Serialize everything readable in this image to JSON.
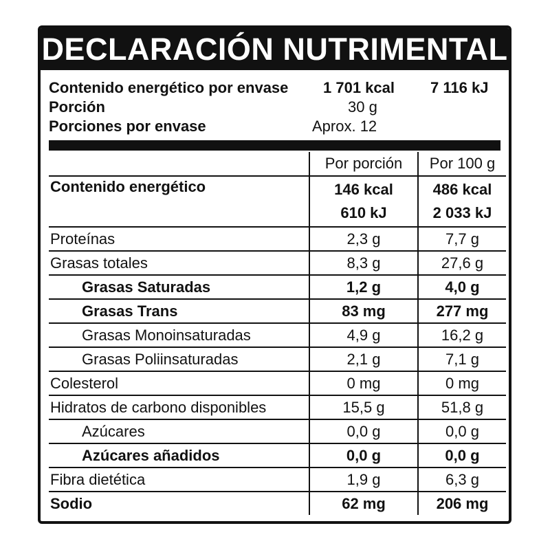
{
  "title": "DECLARACIÓN NUTRIMENTAL",
  "summary": {
    "energy_label": "Contenido energético por envase",
    "energy_kcal": "1 701 kcal",
    "energy_kj": "7 116 kJ",
    "portion_label": "Porción",
    "portion_value": "30 g",
    "servings_label": "Porciones por envase",
    "servings_value": "Aprox. 12"
  },
  "columns": {
    "per_portion": "Por porción",
    "per_100g": "Por 100 g"
  },
  "energy_row": {
    "label": "Contenido energético",
    "portion_kcal": "146 kcal",
    "portion_kj": "610 kJ",
    "per100_kcal": "486 kcal",
    "per100_kj": "2 033 kJ"
  },
  "rows": [
    {
      "label": "Proteínas",
      "portion": "2,3 g",
      "per100": "7,7 g"
    },
    {
      "label": "Grasas totales",
      "portion": "8,3 g",
      "per100": "27,6 g"
    },
    {
      "label": "Grasas Saturadas",
      "portion": "1,2 g",
      "per100": "4,0 g"
    },
    {
      "label": "Grasas Trans",
      "portion": "83 mg",
      "per100": "277 mg"
    },
    {
      "label": "Grasas Monoinsaturadas",
      "portion": "4,9 g",
      "per100": "16,2 g"
    },
    {
      "label": "Grasas Poliinsaturadas",
      "portion": "2,1 g",
      "per100": "7,1 g"
    },
    {
      "label": "Colesterol",
      "portion": "0 mg",
      "per100": "0 mg"
    },
    {
      "label": "Hidratos de carbono disponibles",
      "portion": "15,5 g",
      "per100": "51,8 g"
    },
    {
      "label": "Azúcares",
      "portion": "0,0 g",
      "per100": "0,0 g"
    },
    {
      "label": "Azúcares añadidos",
      "portion": "0,0 g",
      "per100": "0,0 g"
    },
    {
      "label": "Fibra dietética",
      "portion": "1,9 g",
      "per100": "6,3 g"
    },
    {
      "label": "Sodio",
      "portion": "62 mg",
      "per100": "206 mg"
    }
  ]
}
